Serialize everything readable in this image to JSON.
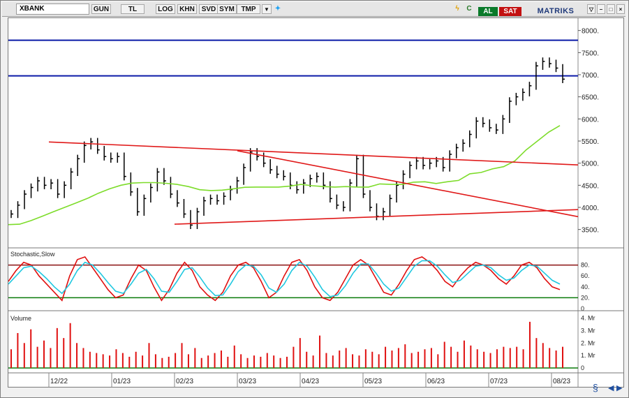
{
  "toolbar": {
    "symbol": "XBANK",
    "buttons": [
      "GUN",
      "TL",
      "LOG",
      "KHN",
      "SVD",
      "SYM",
      "TMP"
    ],
    "buy_label": "AL",
    "sell_label": "SAT",
    "brand": "MATRIKS",
    "colors": {
      "buy": "#0a7a2a",
      "sell": "#c31010",
      "brand": "#203a7a"
    }
  },
  "chart_data": [
    {
      "type": "candlestick",
      "title": "",
      "yticks": [
        3500,
        4000,
        4500,
        5000,
        5500,
        6000,
        6500,
        7000,
        7500,
        8000
      ],
      "ytick_labels": [
        "3500.",
        "4000.",
        "4500.",
        "5000.",
        "5500.",
        "6000.",
        "6500.",
        "7000.",
        "7500.",
        "8000."
      ],
      "ylim": [
        3100,
        8200
      ],
      "xticks": [
        "12/22",
        "01/23",
        "02/23",
        "03/23",
        "04/23",
        "05/23",
        "06/23",
        "07/23",
        "08/23"
      ],
      "horizontal_levels": [
        7780,
        6975
      ],
      "price_close": [
        3850,
        4050,
        4300,
        4450,
        4600,
        4500,
        4550,
        4300,
        4500,
        4800,
        5100,
        5400,
        5480,
        5300,
        5150,
        5100,
        5150,
        4700,
        4350,
        3900,
        4200,
        4450,
        4800,
        4600,
        4300,
        4100,
        3850,
        3600,
        3900,
        4150,
        4200,
        4150,
        4250,
        4400,
        4600,
        4900,
        5250,
        5150,
        5000,
        4850,
        4750,
        4700,
        4500,
        4400,
        4550,
        4650,
        4700,
        4500,
        4200,
        4050,
        4000,
        4550,
        5100,
        4300,
        4000,
        3800,
        3900,
        4200,
        4500,
        4750,
        4950,
        5050,
        4950,
        5000,
        5050,
        4900,
        5200,
        5350,
        5450,
        5650,
        5950,
        5900,
        5800,
        5750,
        6000,
        6400,
        6500,
        6600,
        6750,
        7200,
        7300,
        7250,
        7150,
        6900
      ],
      "moving_average": [
        3610,
        3620,
        3700,
        3800,
        3900,
        4000,
        4100,
        4200,
        4320,
        4420,
        4500,
        4550,
        4560,
        4560,
        4545,
        4520,
        4470,
        4400,
        4380,
        4390,
        4420,
        4455,
        4460,
        4460,
        4460,
        4480,
        4520,
        4490,
        4470,
        4460,
        4470,
        4460,
        4460,
        4530,
        4520,
        4520,
        4570,
        4580,
        4540,
        4580,
        4610,
        4760,
        4790,
        4870,
        4920,
        5050,
        5300,
        5500,
        5700,
        5850
      ],
      "trendlines": [
        {
          "from": [
            "12/22",
            5480
          ],
          "to": [
            "08/23+",
            4960
          ]
        },
        {
          "from": [
            "02/23",
            3620
          ],
          "to": [
            "08/23+",
            3950
          ]
        },
        {
          "from": [
            "03/23",
            5280
          ],
          "to": [
            "08/23+",
            3790
          ]
        }
      ]
    },
    {
      "type": "line",
      "title": "Stochastic,Slow",
      "yticks": [
        0,
        20,
        40,
        60,
        80
      ],
      "ytick_labels": [
        "0",
        "20.",
        "40.",
        "60.",
        "80."
      ],
      "ylim": [
        0,
        100
      ],
      "levels": [
        80,
        20
      ],
      "series": [
        {
          "name": "",
          "color": "#e01010",
          "values": [
            50,
            70,
            85,
            80,
            60,
            45,
            30,
            15,
            60,
            90,
            95,
            75,
            55,
            35,
            20,
            25,
            55,
            80,
            70,
            40,
            15,
            35,
            65,
            85,
            70,
            40,
            25,
            15,
            30,
            60,
            80,
            85,
            75,
            50,
            20,
            30,
            60,
            85,
            90,
            70,
            40,
            20,
            15,
            30,
            55,
            80,
            90,
            80,
            55,
            30,
            25,
            45,
            70,
            90,
            95,
            85,
            70,
            50,
            40,
            60,
            75,
            85,
            80,
            70,
            55,
            45,
            60,
            80,
            85,
            75,
            55,
            40,
            35
          ]
        },
        {
          "name": "",
          "color": "#20c8e0",
          "values": [
            45,
            60,
            75,
            78,
            68,
            55,
            40,
            28,
            45,
            70,
            85,
            80,
            65,
            48,
            32,
            28,
            45,
            65,
            72,
            55,
            32,
            30,
            50,
            72,
            75,
            58,
            38,
            24,
            25,
            45,
            68,
            80,
            78,
            62,
            38,
            30,
            45,
            70,
            85,
            78,
            58,
            35,
            22,
            25,
            42,
            65,
            82,
            82,
            65,
            45,
            32,
            38,
            58,
            78,
            88,
            88,
            78,
            62,
            48,
            52,
            65,
            78,
            80,
            75,
            62,
            52,
            56,
            70,
            80,
            78,
            65,
            52,
            45
          ]
        }
      ]
    },
    {
      "type": "bar",
      "title": "Volume",
      "yticks": [
        0,
        1000000,
        2000000,
        3000000,
        4000000
      ],
      "ytick_labels": [
        "0",
        "1. Mr",
        "2. Mr",
        "3. Mr",
        "4. Mr"
      ],
      "ylim": [
        0,
        4200000
      ],
      "values": [
        1500000,
        2800000,
        2000000,
        3100000,
        1700000,
        2200000,
        1600000,
        3200000,
        2400000,
        3600000,
        2000000,
        1600000,
        1300000,
        1200000,
        1100000,
        1000000,
        1500000,
        1200000,
        900000,
        1300000,
        1000000,
        2000000,
        1100000,
        800000,
        900000,
        1200000,
        2000000,
        1100000,
        1600000,
        800000,
        1000000,
        1200000,
        1400000,
        900000,
        1800000,
        1100000,
        800000,
        1000000,
        900000,
        1200000,
        1000000,
        800000,
        900000,
        1700000,
        2400000,
        1300000,
        1000000,
        2600000,
        1200000,
        1000000,
        1400000,
        1600000,
        1100000,
        1000000,
        1500000,
        1300000,
        1100000,
        1700000,
        1400000,
        1600000,
        1900000,
        1200000,
        1300000,
        1500000,
        1600000,
        1100000,
        2100000,
        1700000,
        1300000,
        2200000,
        1800000,
        1500000,
        1300000,
        1200000,
        1500000,
        1700000,
        1600000,
        1700000,
        1500000,
        3700000,
        2400000,
        2000000,
        1600000,
        1400000,
        1700000
      ]
    }
  ]
}
